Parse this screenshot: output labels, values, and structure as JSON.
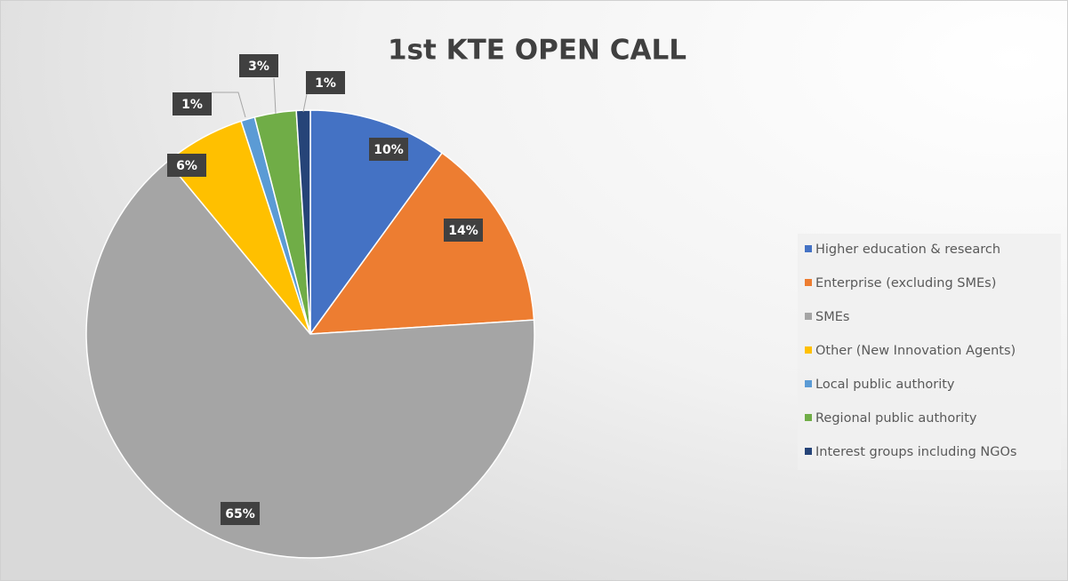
{
  "chart_data": {
    "type": "pie",
    "title": "1st KTE OPEN CALL",
    "categories": [
      "Higher education & research",
      "Enterprise (excluding SMEs)",
      "SMEs",
      "Other (New Innovation Agents)",
      "Local public authority",
      "Regional public authority",
      "Interest groups including NGOs"
    ],
    "values": [
      10,
      14,
      65,
      6,
      1,
      3,
      1
    ],
    "value_labels": [
      "10%",
      "14%",
      "65%",
      "6%",
      "1%",
      "3%",
      "1%"
    ],
    "colors": [
      "#4472c4",
      "#ed7d31",
      "#a5a5a5",
      "#ffc000",
      "#5b9bd5",
      "#70ad47",
      "#264478"
    ],
    "legend": "right"
  }
}
